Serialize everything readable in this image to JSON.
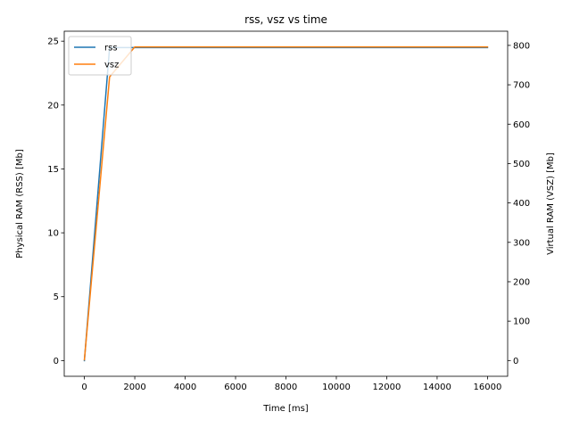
{
  "chart_data": {
    "type": "line",
    "title": "rss, vsz vs time",
    "xlabel": "Time [ms]",
    "ylabel_left": "Physical RAM (RSS) [Mb]",
    "ylabel_right": "Virtual RAM (VSZ) [Mb]",
    "xlim": [
      -800,
      16800
    ],
    "ylim_left": [
      -1.23,
      25.78
    ],
    "ylim_right": [
      -40.0,
      836.0
    ],
    "x_ticks": [
      0,
      2000,
      4000,
      6000,
      8000,
      10000,
      12000,
      14000,
      16000
    ],
    "x_tick_labels": [
      "0",
      "2000",
      "4000",
      "6000",
      "8000",
      "10000",
      "12000",
      "14000",
      "16000"
    ],
    "y_left_ticks": [
      0,
      5,
      10,
      15,
      20,
      25
    ],
    "y_left_tick_labels": [
      "0",
      "5",
      "10",
      "15",
      "20",
      "25"
    ],
    "y_right_ticks": [
      0,
      100,
      200,
      300,
      400,
      500,
      600,
      700,
      800
    ],
    "y_right_tick_labels": [
      "0",
      "100",
      "200",
      "300",
      "400",
      "500",
      "600",
      "700",
      "800"
    ],
    "legend_position": "upper-left",
    "grid": false,
    "series": [
      {
        "name": "rss",
        "axis": "left",
        "color": "#1f77b4",
        "x": [
          0,
          1000,
          2000,
          3000,
          4000,
          5000,
          6000,
          7000,
          8000,
          9000,
          10000,
          11000,
          12000,
          13000,
          14000,
          15000,
          16000
        ],
        "values": [
          0.0,
          24.5,
          24.5,
          24.5,
          24.5,
          24.5,
          24.5,
          24.5,
          24.5,
          24.5,
          24.5,
          24.5,
          24.5,
          24.5,
          24.5,
          24.5,
          24.5
        ]
      },
      {
        "name": "vsz",
        "axis": "right",
        "color": "#ff7f0e",
        "x": [
          0,
          1000,
          2000,
          3000,
          4000,
          5000,
          6000,
          7000,
          8000,
          9000,
          10000,
          11000,
          12000,
          13000,
          14000,
          15000,
          16000
        ],
        "values": [
          2,
          720,
          796,
          796,
          796,
          796,
          796,
          796,
          796,
          796,
          796,
          796,
          796,
          796,
          796,
          796,
          796
        ]
      }
    ]
  }
}
